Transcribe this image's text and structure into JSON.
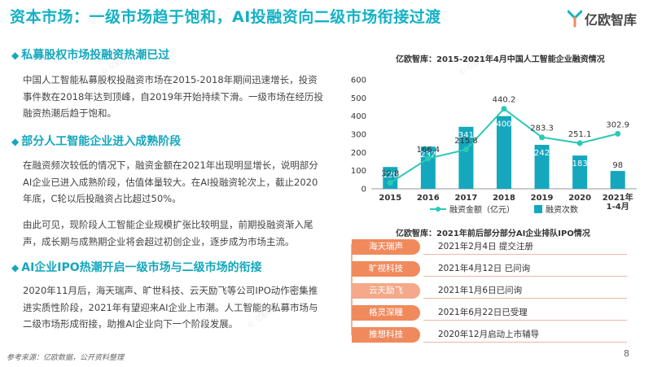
{
  "page": {
    "title": "资本市场：一级市场趋于饱和，AI投融资向二级市场衔接过渡",
    "logo_text": "亿欧智库",
    "page_number": "8",
    "source": "参考来源：亿欧数据，公开资料整理",
    "colors": {
      "accent": "#14b1c5",
      "bar": "#14a7bd",
      "line": "#2bc9b5",
      "ipo_orange": "#f08a5d",
      "ipo_peach": "#f3a98a"
    }
  },
  "sections": [
    {
      "heading": "私募股权市场投融资热潮已过",
      "paragraphs": [
        "中国人工智能私募股权投融资市场在2015-2018年期间迅速增长，投资事件数在2018年达到顶峰，自2019年开始持续下滑。一级市场在经历投融资热潮后趋于饱和。"
      ]
    },
    {
      "heading": "部分人工智能企业进入成熟阶段",
      "paragraphs": [
        "在融资频次较低的情况下，融资金额在2021年出现明显增长，说明部分AI企业已进入成熟阶段，估值体量较大。在AI投融资轮次上，截止2020年底，C轮以后投融资占比超过50%。",
        "由此可见，现阶段人工智能企业规模扩张比较明显，前期投融资渐入尾声，成长期与成熟期企业将会超过初创企业，逐步成为市场主流。"
      ]
    },
    {
      "heading": "AI企业IPO热潮开启一级市场与二级市场的衔接",
      "paragraphs": [
        "2020年11月后，海天瑞声、旷世科技、云天励飞等公司IPO动作密集推进实质性阶段，2021年有望迎来AI企业上市潮。人工智能的私募市场与二级市场形成衔接，助推AI企业向下一个阶段发展。"
      ]
    }
  ],
  "chart_data": {
    "type": "bar",
    "title": "亿欧智库：2015-2021年4月中国人工智能企业融资情况",
    "categories": [
      "2015",
      "2016",
      "2017",
      "2018",
      "2019",
      "2020",
      "2021年1-4月"
    ],
    "category_lines": [
      [
        "2015"
      ],
      [
        "2016"
      ],
      [
        "2017"
      ],
      [
        "2018"
      ],
      [
        "2019"
      ],
      [
        "2020"
      ],
      [
        "2021年",
        "1-4月"
      ]
    ],
    "series": [
      {
        "name": "融资金额（亿元）",
        "type": "line",
        "values": [
          32.8,
          166.4,
          215.8,
          440.2,
          283.3,
          251.1,
          302.9
        ],
        "labels": [
          "32.8",
          "166.4",
          "215.8",
          "440.2",
          "283.3",
          "251.1",
          "302.9"
        ]
      },
      {
        "name": "融资次数",
        "type": "bar",
        "values": [
          120,
          232,
          341,
          400,
          242,
          183,
          98
        ],
        "labels": [
          "120",
          "232",
          "341",
          "400",
          "242",
          "183",
          "98"
        ]
      }
    ],
    "yticks": [
      "0",
      "100",
      "200",
      "300",
      "400",
      "500",
      "600"
    ],
    "ylim": [
      0,
      600
    ],
    "legend_position": "bottom",
    "grid": false
  },
  "ipo": {
    "title": "亿欧智库：2021年前后部分部分AI企业排队IPO情况",
    "items": [
      {
        "company": "海天瑞声",
        "event": "2021年2月4日 提交注册",
        "color": "#f08a5d"
      },
      {
        "company": "旷视科技",
        "event": "2021年4月12日 已问询",
        "color": "#f08a5d"
      },
      {
        "company": "云天励飞",
        "event": "2021年1月6日已问询",
        "color": "#f3a98a"
      },
      {
        "company": "格灵深瞳",
        "event": "2021年6月22日已受理",
        "color": "#f08a5d"
      },
      {
        "company": "推想科技",
        "event": "2020年12月启动上市辅导",
        "color": "#f08a5d"
      }
    ]
  }
}
